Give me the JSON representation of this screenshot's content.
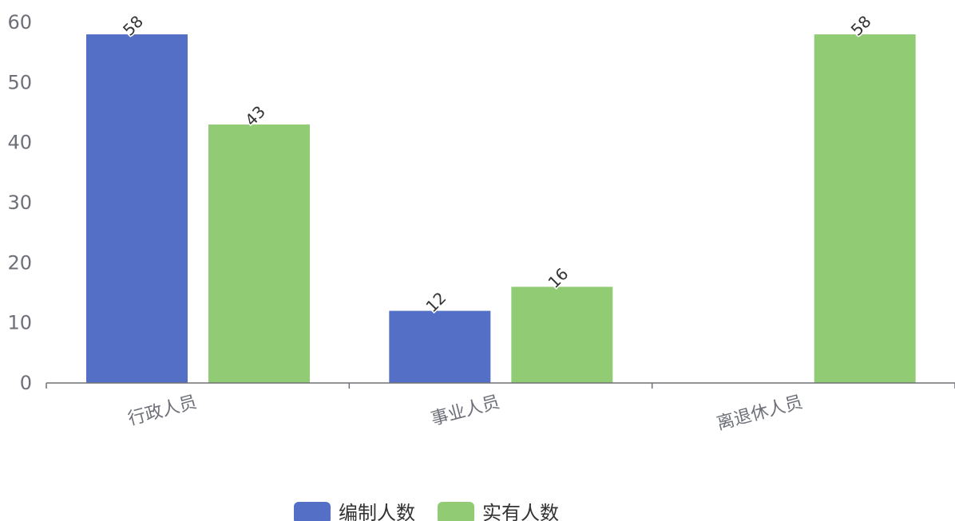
{
  "chart_data": {
    "type": "bar",
    "categories": [
      "行政人员",
      "事业人员",
      "离退休人员"
    ],
    "series": [
      {
        "name": "编制人数",
        "values": [
          58,
          12,
          null
        ],
        "color": "#5470c6"
      },
      {
        "name": "实有人数",
        "values": [
          43,
          16,
          58
        ],
        "color": "#91cc75"
      }
    ],
    "ylim": [
      0,
      60
    ],
    "yticks": [
      0,
      10,
      20,
      30,
      40,
      50,
      60
    ],
    "grid": false,
    "legend_position": "bottom-center",
    "data_labels": true,
    "axis_color": "#6e7079"
  }
}
